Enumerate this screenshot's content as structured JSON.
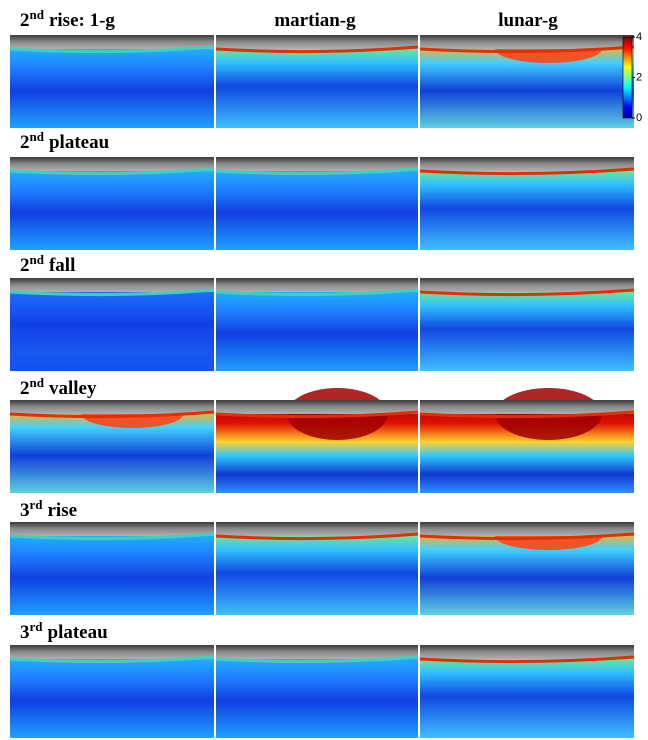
{
  "figure": {
    "column_headers": [
      "martian-g",
      "lunar-g"
    ],
    "rows": [
      {
        "number": "2",
        "suffix": "nd",
        "label": "rise: 1-g"
      },
      {
        "number": "2",
        "suffix": "nd",
        "label": "plateau"
      },
      {
        "number": "2",
        "suffix": "nd",
        "label": "fall"
      },
      {
        "number": "2",
        "suffix": "nd",
        "label": "valley"
      },
      {
        "number": "3",
        "suffix": "rd",
        "label": "rise"
      },
      {
        "number": "3",
        "suffix": "rd",
        "label": "plateau"
      }
    ],
    "colorbar": {
      "ylim": [
        0,
        4
      ],
      "yticks": [
        0,
        2,
        4
      ]
    }
  }
}
